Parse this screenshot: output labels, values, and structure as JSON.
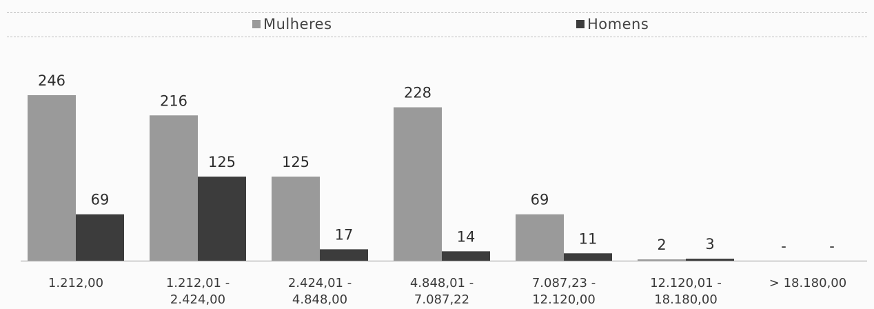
{
  "chart_data": {
    "type": "bar",
    "categories": [
      [
        "1.212,00"
      ],
      [
        "1.212,01 -",
        "2.424,00"
      ],
      [
        "2.424,01 -",
        "4.848,00"
      ],
      [
        "4.848,01 -",
        "7.087,22"
      ],
      [
        "7.087,23 -",
        "12.120,00"
      ],
      [
        "12.120,01 -",
        "18.180,00"
      ],
      [
        "> 18.180,00"
      ]
    ],
    "series": [
      {
        "name": "Mulheres",
        "color": "#9a9a9a",
        "values": [
          246,
          216,
          125,
          228,
          69,
          2,
          null
        ],
        "labels": [
          "246",
          "216",
          "125",
          "228",
          "69",
          "2",
          "-"
        ]
      },
      {
        "name": "Homens",
        "color": "#3c3c3c",
        "values": [
          69,
          125,
          17,
          14,
          11,
          3,
          null
        ],
        "labels": [
          "69",
          "125",
          "17",
          "14",
          "11",
          "3",
          "-"
        ]
      }
    ],
    "ylim": [
      0,
      246
    ],
    "legend": "top",
    "grid": false
  }
}
